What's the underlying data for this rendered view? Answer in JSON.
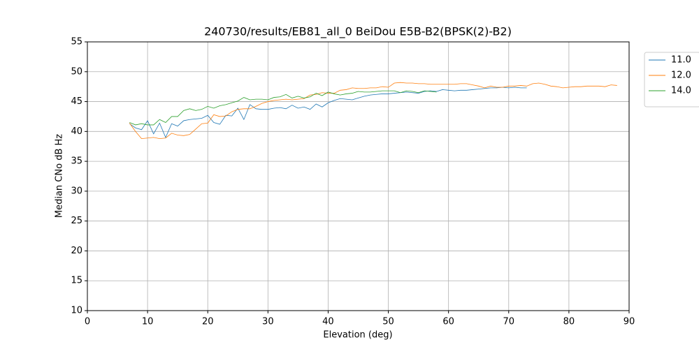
{
  "chart_data": {
    "type": "line",
    "title": "240730/results/EB81_all_0 BeiDou E5B-B2(BPSK(2)-B2)",
    "x_label": "Elevation (deg)",
    "y_label": "Median CNo dB Hz",
    "xlim": [
      0,
      90
    ],
    "xticks": [
      0,
      10,
      20,
      30,
      40,
      50,
      60,
      70,
      80,
      90
    ],
    "ylim": [
      10,
      55
    ],
    "yticks": [
      10,
      15,
      20,
      25,
      30,
      35,
      40,
      45,
      50,
      55
    ],
    "grid": true,
    "legend": "outside-right",
    "series": [
      {
        "name": "11.0",
        "color": "#1f77b4",
        "x": [
          7,
          8,
          9,
          10,
          11,
          12,
          13,
          14,
          15,
          16,
          17,
          18,
          19,
          20,
          21,
          22,
          23,
          24,
          25,
          26,
          27,
          28,
          29,
          30,
          31,
          32,
          33,
          34,
          35,
          36,
          37,
          38,
          39,
          40,
          41,
          42,
          43,
          44,
          45,
          46,
          47,
          48,
          49,
          50,
          51,
          52,
          53,
          54,
          55,
          56,
          57,
          58,
          59,
          60,
          61,
          62,
          63,
          64,
          65,
          66,
          67,
          68,
          69,
          70,
          71,
          72,
          73
        ],
        "values": [
          41.3,
          40.6,
          40.3,
          41.8,
          39.6,
          41.4,
          39.0,
          41.3,
          40.9,
          41.8,
          42.0,
          42.1,
          42.2,
          42.7,
          41.5,
          41.2,
          42.7,
          42.6,
          43.9,
          42.0,
          44.5,
          43.8,
          43.7,
          43.7,
          43.9,
          44.0,
          43.8,
          44.4,
          43.9,
          44.1,
          43.7,
          44.6,
          44.1,
          44.8,
          45.2,
          45.5,
          45.4,
          45.3,
          45.6,
          45.9,
          46.1,
          46.2,
          46.3,
          46.3,
          46.4,
          46.5,
          46.6,
          46.5,
          46.4,
          46.7,
          46.8,
          46.7,
          47.0,
          46.9,
          46.8,
          46.9,
          46.9,
          47.0,
          47.1,
          47.2,
          47.3,
          47.3,
          47.4,
          47.3,
          47.4,
          47.3,
          47.3
        ]
      },
      {
        "name": "12.0",
        "color": "#ff7f0e",
        "x": [
          7,
          8,
          9,
          10,
          11,
          12,
          13,
          14,
          15,
          16,
          17,
          18,
          19,
          20,
          21,
          22,
          23,
          24,
          25,
          26,
          27,
          28,
          29,
          30,
          31,
          32,
          33,
          34,
          35,
          36,
          37,
          38,
          39,
          40,
          41,
          42,
          43,
          44,
          45,
          46,
          47,
          48,
          49,
          50,
          51,
          52,
          53,
          54,
          55,
          56,
          57,
          58,
          59,
          60,
          61,
          62,
          63,
          64,
          65,
          66,
          67,
          68,
          69,
          70,
          71,
          72,
          73,
          74,
          75,
          76,
          77,
          78,
          79,
          80,
          81,
          82,
          83,
          84,
          85,
          86,
          87,
          88
        ],
        "values": [
          41.4,
          40.0,
          38.8,
          38.9,
          39.0,
          38.8,
          38.9,
          39.7,
          39.4,
          39.3,
          39.5,
          40.4,
          41.3,
          41.4,
          42.8,
          42.5,
          42.6,
          43.3,
          43.7,
          43.8,
          43.8,
          44.2,
          44.7,
          45.0,
          45.2,
          45.3,
          45.4,
          45.3,
          45.4,
          45.5,
          46.1,
          46.2,
          46.5,
          46.4,
          46.4,
          46.9,
          47.0,
          47.3,
          47.2,
          47.2,
          47.3,
          47.3,
          47.5,
          47.4,
          48.1,
          48.2,
          48.1,
          48.1,
          48.0,
          48.0,
          47.9,
          47.9,
          47.9,
          47.9,
          47.9,
          48.0,
          48.0,
          47.8,
          47.6,
          47.3,
          47.6,
          47.4,
          47.4,
          47.6,
          47.6,
          47.7,
          47.6,
          48.0,
          48.1,
          47.9,
          47.6,
          47.5,
          47.3,
          47.4,
          47.5,
          47.5,
          47.6,
          47.6,
          47.6,
          47.5,
          47.8,
          47.7
        ]
      },
      {
        "name": "14.0",
        "color": "#2ca02c",
        "x": [
          7,
          8,
          9,
          10,
          11,
          12,
          13,
          14,
          15,
          16,
          17,
          18,
          19,
          20,
          21,
          22,
          23,
          24,
          25,
          26,
          27,
          28,
          29,
          30,
          31,
          32,
          33,
          34,
          35,
          36,
          37,
          38,
          39,
          40,
          41,
          42,
          43,
          44,
          45,
          46,
          47,
          48,
          49,
          50,
          51,
          52,
          53,
          54,
          55,
          56,
          57,
          58
        ],
        "values": [
          41.5,
          41.1,
          41.3,
          41.1,
          41.1,
          42.0,
          41.5,
          42.5,
          42.5,
          43.5,
          43.8,
          43.5,
          43.7,
          44.2,
          43.9,
          44.3,
          44.5,
          44.8,
          45.1,
          45.7,
          45.3,
          45.4,
          45.4,
          45.3,
          45.7,
          45.8,
          46.2,
          45.6,
          45.9,
          45.6,
          45.8,
          46.4,
          46.0,
          46.6,
          46.3,
          46.1,
          46.3,
          46.4,
          46.7,
          46.6,
          46.6,
          46.7,
          46.8,
          46.8,
          46.8,
          46.5,
          46.8,
          46.7,
          46.5,
          46.8,
          46.7,
          46.6
        ]
      }
    ]
  }
}
